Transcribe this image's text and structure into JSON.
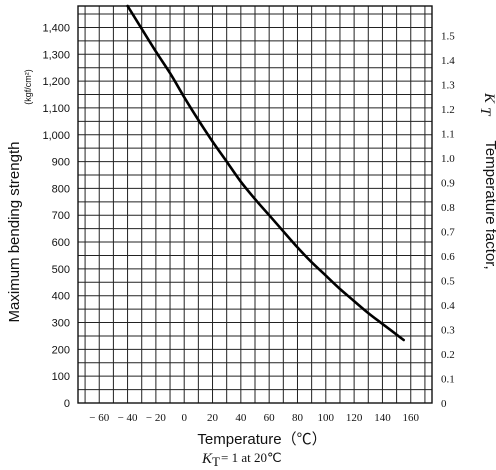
{
  "chart_data": {
    "type": "line",
    "xlabel": "Temperature（℃）",
    "ylabel_left": "Maximum bending strength",
    "ylabel_left_unit": "(kgf/cm²)",
    "ylabel_right": "Temperature factor,",
    "ylabel_right_symbol": "K",
    "ylabel_right_symbol_sub": "T",
    "note": "= 1 at 20℃",
    "note_symbol": "K",
    "note_symbol_sub": "T",
    "x_ticks": [
      "− 60",
      "− 40",
      "− 20",
      "0",
      "20",
      "40",
      "60",
      "80",
      "100",
      "120",
      "140",
      "160"
    ],
    "y_left_ticks": [
      "0",
      "100",
      "200",
      "300",
      "400",
      "500",
      "600",
      "700",
      "800",
      "900",
      "1,000",
      "1,100",
      "1,200",
      "1,300",
      "1,400"
    ],
    "y_right_ticks": [
      "0",
      "0.1",
      "0.2",
      "0.3",
      "0.4",
      "0.5",
      "0.6",
      "0.7",
      "0.8",
      "0.9",
      "1.0",
      "1.1",
      "1.2",
      "1.3",
      "1.4",
      "1.5"
    ],
    "xlim": [
      -75,
      175
    ],
    "ylim_left": [
      0,
      1480
    ],
    "ylim_right": [
      0,
      1.62
    ],
    "grid": true,
    "series": [
      {
        "x": [
          -40,
          -30,
          -20,
          -10,
          0,
          10,
          20,
          30,
          40,
          50,
          60,
          70,
          80,
          90,
          100,
          110,
          120,
          130,
          140,
          150,
          155
        ],
        "y": [
          1480,
          1395,
          1310,
          1230,
          1140,
          1055,
          975,
          900,
          825,
          760,
          700,
          640,
          580,
          525,
          475,
          425,
          380,
          335,
          295,
          255,
          235
        ]
      }
    ]
  }
}
